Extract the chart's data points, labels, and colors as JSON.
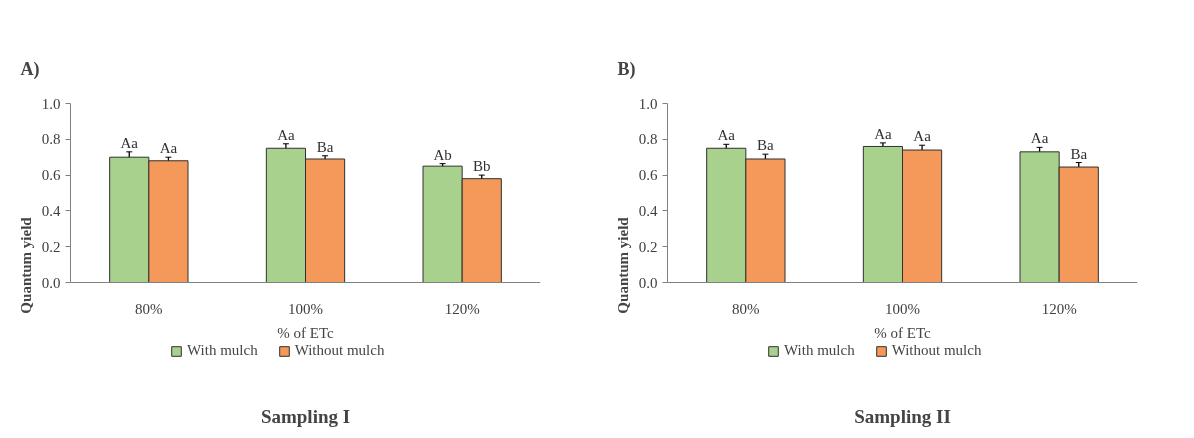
{
  "chart_data": [
    {
      "type": "bar",
      "title": "Sampling I",
      "annotations": [
        "A)"
      ],
      "xlabel": "% of ETc",
      "ylabel": "Quantum yield",
      "categories": [
        "80%",
        "100%",
        "120%"
      ],
      "series": [
        {
          "name": "With mulch",
          "color": "#a9d18e",
          "values": [
            0.7,
            0.75,
            0.65
          ],
          "errors": [
            0.03,
            0.025,
            0.014
          ],
          "value_labels": [
            "Aa",
            "Aa",
            "Ab"
          ]
        },
        {
          "name": "Without mulch",
          "color": "#f4995a",
          "values": [
            0.68,
            0.69,
            0.58
          ],
          "errors": [
            0.02,
            0.018,
            0.02
          ],
          "value_labels": [
            "Aa",
            "Ba",
            "Bb"
          ]
        }
      ],
      "ylim": [
        0,
        1
      ],
      "yticks": [
        {
          "value": 0,
          "label": "0.0"
        },
        {
          "value": 0.2,
          "label": "0.2"
        },
        {
          "value": 0.4,
          "label": "0.4"
        },
        {
          "value": 0.6,
          "label": "0.6"
        },
        {
          "value": 0.8,
          "label": "0.8"
        },
        {
          "value": 1,
          "label": "1.0"
        }
      ],
      "legend": "bottom",
      "grid": false
    },
    {
      "type": "bar",
      "title": "Sampling II",
      "annotations": [
        "B)"
      ],
      "xlabel": "% of ETc",
      "ylabel": "Quantum yield",
      "categories": [
        "80%",
        "100%",
        "120%"
      ],
      "series": [
        {
          "name": "With mulch",
          "color": "#a9d18e",
          "values": [
            0.75,
            0.76,
            0.73
          ],
          "errors": [
            0.022,
            0.02,
            0.025
          ],
          "value_labels": [
            "Aa",
            "Aa",
            "Aa"
          ]
        },
        {
          "name": "Without mulch",
          "color": "#f4995a",
          "values": [
            0.69,
            0.74,
            0.645
          ],
          "errors": [
            0.027,
            0.027,
            0.025
          ],
          "value_labels": [
            "Ba",
            "Aa",
            "Ba"
          ]
        }
      ],
      "ylim": [
        0,
        1
      ],
      "yticks": [
        {
          "value": 0,
          "label": "0.0"
        },
        {
          "value": 0.2,
          "label": "0.2"
        },
        {
          "value": 0.4,
          "label": "0.4"
        },
        {
          "value": 0.6,
          "label": "0.6"
        },
        {
          "value": 0.8,
          "label": "0.8"
        },
        {
          "value": 1,
          "label": "1.0"
        }
      ],
      "legend": "bottom",
      "grid": false
    }
  ]
}
